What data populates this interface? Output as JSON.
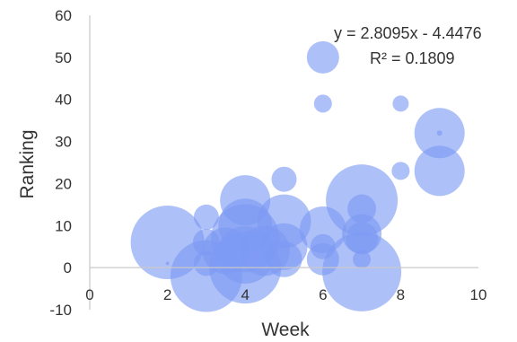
{
  "chart_data": {
    "type": "scatter",
    "subtype": "bubble",
    "title": "",
    "xlabel": "Week",
    "ylabel": "Ranking",
    "xlim": [
      0,
      10
    ],
    "ylim": [
      -10,
      60
    ],
    "x_ticks": [
      "0",
      "2",
      "4",
      "6",
      "8",
      "10"
    ],
    "y_ticks": [
      "-10",
      "0",
      "10",
      "20",
      "30",
      "40",
      "50",
      "60"
    ],
    "grid": false,
    "legend": "none",
    "bubble_color": "#7c9af3",
    "trendline": {
      "equation": "y = 2.8095x - 4.4476",
      "r_squared": "R² = 0.1809",
      "visible_line": false
    },
    "points": [
      {
        "x": 2,
        "y": 6,
        "size": 41
      },
      {
        "x": 2,
        "y": 1,
        "size": 2
      },
      {
        "x": 3,
        "y": 12,
        "size": 14
      },
      {
        "x": 3,
        "y": 6,
        "size": 15
      },
      {
        "x": 3,
        "y": 1,
        "size": 14
      },
      {
        "x": 3,
        "y": -2,
        "size": 40
      },
      {
        "x": 3.5,
        "y": 4,
        "size": 26
      },
      {
        "x": 4,
        "y": 16,
        "size": 28
      },
      {
        "x": 4,
        "y": 10,
        "size": 30
      },
      {
        "x": 4,
        "y": 7,
        "size": 38
      },
      {
        "x": 4,
        "y": 3,
        "size": 32
      },
      {
        "x": 4,
        "y": 0,
        "size": 40
      },
      {
        "x": 4.5,
        "y": 4,
        "size": 28
      },
      {
        "x": 5,
        "y": 21,
        "size": 14
      },
      {
        "x": 5,
        "y": 11,
        "size": 30
      },
      {
        "x": 5,
        "y": 5,
        "size": 26
      },
      {
        "x": 5,
        "y": 2,
        "size": 20
      },
      {
        "x": 6,
        "y": 50,
        "size": 18
      },
      {
        "x": 6,
        "y": 39,
        "size": 10
      },
      {
        "x": 6,
        "y": 9,
        "size": 26
      },
      {
        "x": 6,
        "y": 5,
        "size": 14
      },
      {
        "x": 6,
        "y": 2,
        "size": 18
      },
      {
        "x": 7,
        "y": 16,
        "size": 40
      },
      {
        "x": 7,
        "y": 14,
        "size": 16
      },
      {
        "x": 7,
        "y": 8,
        "size": 22
      },
      {
        "x": 7,
        "y": 7,
        "size": 18
      },
      {
        "x": 7,
        "y": 2,
        "size": 10
      },
      {
        "x": 7,
        "y": -1,
        "size": 44
      },
      {
        "x": 8,
        "y": 39,
        "size": 9
      },
      {
        "x": 8,
        "y": 23,
        "size": 10
      },
      {
        "x": 9,
        "y": 32,
        "size": 28
      },
      {
        "x": 9,
        "y": 23,
        "size": 28
      },
      {
        "x": 9,
        "y": 32,
        "size": 3
      }
    ]
  }
}
